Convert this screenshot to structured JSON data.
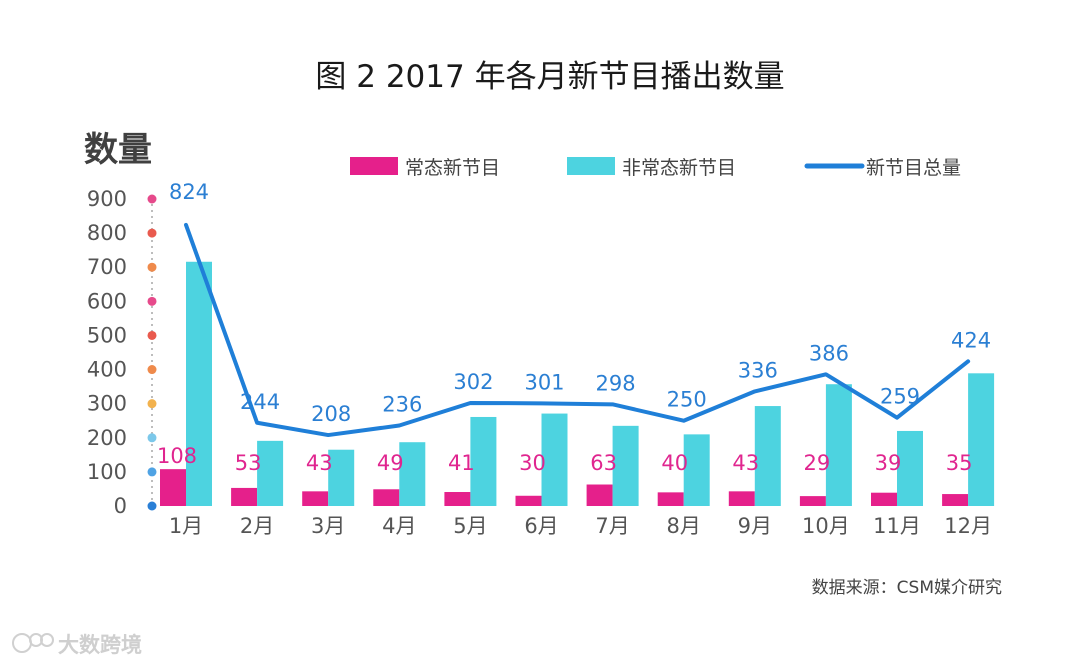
{
  "chart_data": {
    "type": "bar",
    "title": "图 2  2017 年各月新节目播出数量",
    "ylabel": "数量",
    "xlabel": "",
    "ylim": [
      0,
      900
    ],
    "yticks": [
      0,
      100,
      200,
      300,
      400,
      500,
      600,
      700,
      800,
      900
    ],
    "categories": [
      "1月",
      "2月",
      "3月",
      "4月",
      "5月",
      "6月",
      "7月",
      "8月",
      "9月",
      "10月",
      "11月",
      "12月"
    ],
    "series": [
      {
        "name": "常态新节目",
        "type": "bar",
        "color": "#e5208b",
        "values": [
          108,
          53,
          43,
          49,
          41,
          30,
          63,
          40,
          43,
          29,
          39,
          35
        ]
      },
      {
        "name": "非常态新节目",
        "type": "bar",
        "color": "#4dd3e0",
        "values": [
          716,
          191,
          165,
          187,
          261,
          271,
          235,
          210,
          293,
          357,
          220,
          389
        ]
      },
      {
        "name": "新节目总量",
        "type": "line",
        "color": "#1f7fd8",
        "values": [
          824,
          244,
          208,
          236,
          302,
          301,
          298,
          250,
          336,
          386,
          259,
          424
        ]
      }
    ],
    "legend_position": "top",
    "grid": false,
    "axis_dot_colors": [
      "#2a7fd6",
      "#4fa3e4",
      "#7cc8ea",
      "#f2b24e",
      "#ef8a4b",
      "#e95a4e",
      "#e64a8b",
      "#ef8a4b",
      "#e95a4e",
      "#e64a8b"
    ]
  },
  "source": "数据来源：CSM媒介研究",
  "watermark": "大数跨境"
}
